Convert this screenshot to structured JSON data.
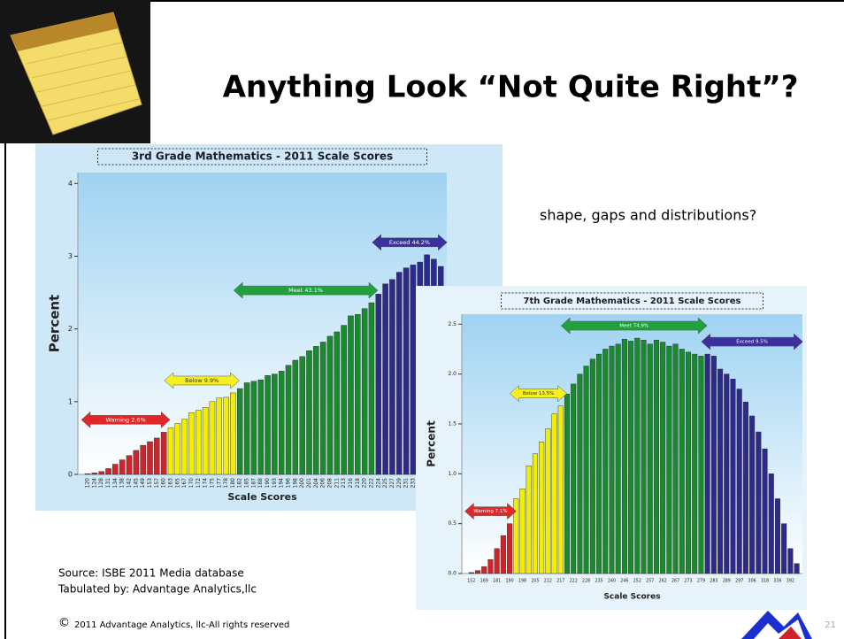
{
  "slide": {
    "title": "Anything Look “Not Quite Right”?",
    "note": "shape, gaps and distributions?",
    "source": "Source: ISBE 2011 Media database",
    "tabulated": "Tabulated by: Advantage Analytics,llc",
    "copyright_symbol": "©",
    "copyright": "2011 Advantage Analytics, llc-All rights reserved",
    "page_number": "21"
  },
  "chart_data": [
    {
      "type": "bar",
      "title": "3rd Grade Mathematics - 2011 Scale Scores",
      "xlabel": "Scale Scores",
      "ylabel": "Percent",
      "categories": [
        "120",
        "124",
        "128",
        "131",
        "134",
        "138",
        "142",
        "145",
        "149",
        "153",
        "157",
        "160",
        "163",
        "165",
        "167",
        "170",
        "172",
        "174",
        "175",
        "177",
        "178",
        "180",
        "182",
        "185",
        "187",
        "188",
        "190",
        "193",
        "194",
        "196",
        "198",
        "200",
        "201",
        "204",
        "206",
        "208",
        "211",
        "213",
        "216",
        "218",
        "220",
        "222",
        "224",
        "225",
        "227",
        "229",
        "231",
        "233",
        "235",
        "237",
        "239",
        "241"
      ],
      "values": [
        0.01,
        0.02,
        0.04,
        0.08,
        0.14,
        0.2,
        0.26,
        0.33,
        0.4,
        0.45,
        0.5,
        0.58,
        0.64,
        0.7,
        0.76,
        0.85,
        0.88,
        0.92,
        1.0,
        1.05,
        1.06,
        1.12,
        1.18,
        1.26,
        1.28,
        1.3,
        1.36,
        1.38,
        1.42,
        1.5,
        1.57,
        1.62,
        1.7,
        1.76,
        1.82,
        1.9,
        1.96,
        2.05,
        2.18,
        2.2,
        2.28,
        2.36,
        2.48,
        2.62,
        2.68,
        2.78,
        2.84,
        2.88,
        2.92,
        3.02,
        2.96,
        2.86
      ],
      "bar_colors": [
        "#d0232a",
        "#d0232a",
        "#d0232a",
        "#d0232a",
        "#d0232a",
        "#d0232a",
        "#d0232a",
        "#d0232a",
        "#d0232a",
        "#d0232a",
        "#d0232a",
        "#d0232a",
        "#f2ee00",
        "#f2ee00",
        "#f2ee00",
        "#f2ee00",
        "#f2ee00",
        "#f2ee00",
        "#f2ee00",
        "#f2ee00",
        "#f2ee00",
        "#f2ee00",
        "#1a8a2e",
        "#1a8a2e",
        "#1a8a2e",
        "#1a8a2e",
        "#1a8a2e",
        "#1a8a2e",
        "#1a8a2e",
        "#1a8a2e",
        "#1a8a2e",
        "#1a8a2e",
        "#1a8a2e",
        "#1a8a2e",
        "#1a8a2e",
        "#1a8a2e",
        "#1a8a2e",
        "#1a8a2e",
        "#1a8a2e",
        "#1a8a2e",
        "#1a8a2e",
        "#1a8a2e",
        "#2e2a8c",
        "#2e2a8c",
        "#2e2a8c",
        "#2e2a8c",
        "#2e2a8c",
        "#2e2a8c",
        "#2e2a8c",
        "#2e2a8c",
        "#2e2a8c",
        "#2e2a8c"
      ],
      "annotations": [
        {
          "text": "Warning 2.6%",
          "color": "#e0282a"
        },
        {
          "text": "Below 9.9%",
          "color": "#f6f020"
        },
        {
          "text": "Meet 43.1%",
          "color": "#22a03e"
        },
        {
          "text": "Exceed 44.2%",
          "color": "#3c2f9e"
        }
      ],
      "ylim": [
        0,
        4.15
      ],
      "yticks": [
        0,
        1,
        2,
        3,
        4
      ]
    },
    {
      "type": "bar",
      "title": "7th Grade Mathematics - 2011 Scale Scores",
      "xlabel": "Scale Scores",
      "ylabel": "Percent",
      "categories": [
        "152",
        null,
        "169",
        null,
        "181",
        null,
        "190",
        null,
        "198",
        null,
        "205",
        null,
        "212",
        null,
        "217",
        null,
        "222",
        null,
        "228",
        null,
        "235",
        null,
        "240",
        null,
        "246",
        null,
        "252",
        null,
        "257",
        null,
        "262",
        null,
        "267",
        null,
        "273",
        null,
        "279",
        null,
        "283",
        null,
        "289",
        null,
        "297",
        null,
        "306",
        null,
        "318",
        null,
        "336",
        null,
        "392",
        null
      ],
      "values": [
        0.01,
        0.03,
        0.07,
        0.14,
        0.25,
        0.38,
        0.5,
        0.75,
        0.85,
        1.08,
        1.2,
        1.32,
        1.45,
        1.6,
        1.68,
        1.8,
        1.9,
        2.0,
        2.08,
        2.15,
        2.2,
        2.25,
        2.28,
        2.3,
        2.35,
        2.33,
        2.36,
        2.34,
        2.3,
        2.34,
        2.32,
        2.28,
        2.3,
        2.25,
        2.22,
        2.2,
        2.18,
        2.2,
        2.18,
        2.05,
        2.0,
        1.95,
        1.85,
        1.72,
        1.58,
        1.42,
        1.25,
        1.0,
        0.75,
        0.5,
        0.25,
        0.1
      ],
      "bar_colors": [
        "#d0232a",
        "#d0232a",
        "#d0232a",
        "#d0232a",
        "#d0232a",
        "#d0232a",
        "#d0232a",
        "#f2ee00",
        "#f2ee00",
        "#f2ee00",
        "#f2ee00",
        "#f2ee00",
        "#f2ee00",
        "#f2ee00",
        "#f2ee00",
        "#1a8a2e",
        "#1a8a2e",
        "#1a8a2e",
        "#1a8a2e",
        "#1a8a2e",
        "#1a8a2e",
        "#1a8a2e",
        "#1a8a2e",
        "#1a8a2e",
        "#1a8a2e",
        "#1a8a2e",
        "#1a8a2e",
        "#1a8a2e",
        "#1a8a2e",
        "#1a8a2e",
        "#1a8a2e",
        "#1a8a2e",
        "#1a8a2e",
        "#1a8a2e",
        "#1a8a2e",
        "#1a8a2e",
        "#1a8a2e",
        "#2e2a8c",
        "#2e2a8c",
        "#2e2a8c",
        "#2e2a8c",
        "#2e2a8c",
        "#2e2a8c",
        "#2e2a8c",
        "#2e2a8c",
        "#2e2a8c",
        "#2e2a8c",
        "#2e2a8c",
        "#2e2a8c",
        "#2e2a8c",
        "#2e2a8c",
        "#2e2a8c"
      ],
      "annotations": [
        {
          "text": "Warning 7.1%",
          "color": "#e0282a"
        },
        {
          "text": "Below 13.5%",
          "color": "#f6f020"
        },
        {
          "text": "Meet 74.9%",
          "color": "#22a03e"
        },
        {
          "text": "Exceed 9.5%",
          "color": "#3c2f9e"
        }
      ],
      "ylim": [
        0,
        2.6
      ],
      "yticks": [
        {
          "value": 0,
          "label": "0.0"
        },
        {
          "value": 0.5,
          "label": "0.5"
        },
        {
          "value": 1,
          "label": "1.0"
        },
        {
          "value": 1.5,
          "label": "1.5"
        },
        {
          "value": 2,
          "label": "2.0"
        },
        {
          "value": 2.5,
          "label": "2.5"
        }
      ]
    }
  ]
}
